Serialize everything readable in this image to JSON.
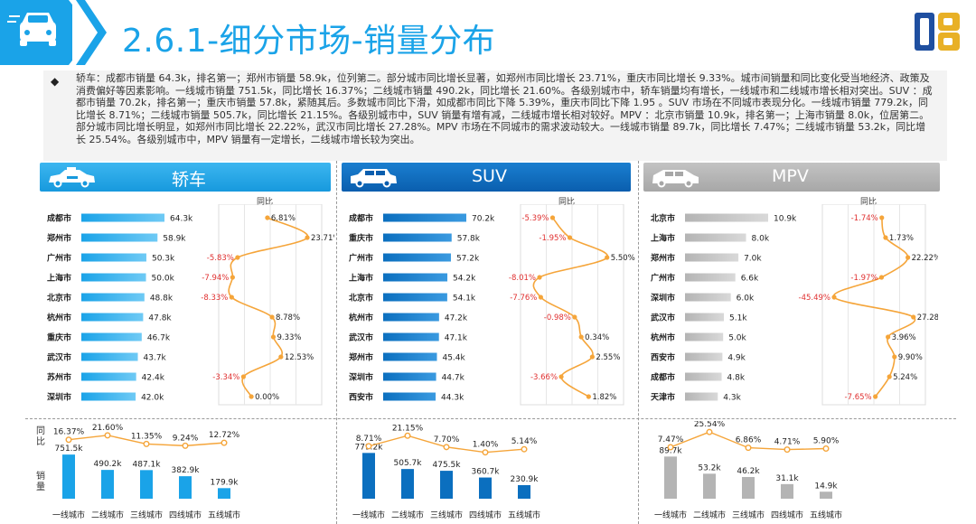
{
  "page": {
    "title": "2.6.1-细分市场-销量分布",
    "bullet": "◆",
    "summary": "轿车：成都市销量 64.3k，排名第一；郑州市销量 58.9k，位列第二。部分城市同比增长显著，如郑州市同比增长 23.71%，重庆市同比增长 9.33%。城市间销量和同比变化受当地经济、政策及消费偏好等因素影响。一线城市销量 751.5k，同比增长 16.37%；二线城市销量 490.2k，同比增长 21.60%。各级别城市中，轿车销量均有增长，一线城市和二线城市增长相对突出。SUV ：成都市销量 70.2k，排名第一；重庆市销量 57.8k，紧随其后。多数城市同比下滑，如成都市同比下降 5.39%，重庆市同比下降 1.95 。SUV 市场在不同城市表现分化。一线城市销量 779.2k，同比增长 8.71%；二线城市销量 505.7k，同比增长 21.15%。各级别城市中，SUV 销量有增有减，二线城市增长相对较好。MPV ：北京市销量 10.9k，排名第一；上海市销量 8.0k，位居第二。部分城市同比增长明显，如郑州市同比增长 22.22%，武汉市同比增长 27.28%。MPV 市场在不同城市的需求波动较大。一线城市销量 89.7k，同比增长 7.47%；二线城市销量 53.2k，同比增长 25.54%。各级别城市中，MPV 销量有一定增长，二线城市增长较为突出。"
  },
  "labels": {
    "tongbi": "同比",
    "bottom_tongbi": "同比",
    "bottom_sales": "销量"
  },
  "colors": {
    "blue": "#1aa3e8",
    "dark_blue": "#0b6fbf",
    "gray": "#b4b4b4",
    "orange": "#f5a53a",
    "red": "#e03030"
  },
  "icons": {
    "left_logo": "car-chevron-logo",
    "right_logo": "brand-logo",
    "panel_icons": [
      "taxi-car-icon",
      "suv-car-icon",
      "mpv-car-icon"
    ]
  },
  "chart_data": [
    {
      "type": "bar",
      "title": "轿车",
      "categories": [
        "成都市",
        "郑州市",
        "广州市",
        "上海市",
        "北京市",
        "杭州市",
        "重庆市",
        "武汉市",
        "苏州市",
        "深圳市"
      ],
      "values": [
        64.3,
        58.9,
        50.3,
        50.0,
        48.8,
        47.8,
        46.7,
        43.7,
        42.4,
        42.0
      ],
      "value_labels": [
        "64.3k",
        "58.9k",
        "50.3k",
        "50.0k",
        "48.8k",
        "47.8k",
        "46.7k",
        "43.7k",
        "42.4k",
        "42.0k"
      ],
      "series": [
        {
          "name": "同比",
          "values": [
            6.81,
            23.71,
            -5.83,
            -7.94,
            -8.33,
            8.78,
            9.33,
            12.53,
            -3.34,
            0.0
          ]
        }
      ],
      "yoy_labels": [
        "6.81%",
        "23.71%",
        "-5.83%",
        "-7.94%",
        "-8.33%",
        "8.78%",
        "9.33%",
        "12.53%",
        "-3.34%",
        "0.00%"
      ]
    },
    {
      "type": "bar",
      "title": "SUV",
      "categories": [
        "成都市",
        "重庆市",
        "广州市",
        "上海市",
        "北京市",
        "杭州市",
        "武汉市",
        "郑州市",
        "深圳市",
        "西安市"
      ],
      "values": [
        70.2,
        57.8,
        57.2,
        54.2,
        54.1,
        47.2,
        47.1,
        45.4,
        44.7,
        44.3
      ],
      "value_labels": [
        "70.2k",
        "57.8k",
        "57.2k",
        "54.2k",
        "54.1k",
        "47.2k",
        "47.1k",
        "45.4k",
        "44.7k",
        "44.3k"
      ],
      "series": [
        {
          "name": "同比",
          "values": [
            -5.39,
            -1.95,
            5.5,
            -8.01,
            -7.76,
            -0.98,
            0.34,
            2.55,
            -3.66,
            1.82
          ]
        }
      ],
      "yoy_labels": [
        "-5.39%",
        "-1.95%",
        "5.50%",
        "-8.01%",
        "-7.76%",
        "-0.98%",
        "0.34%",
        "2.55%",
        "-3.66%",
        "1.82%"
      ]
    },
    {
      "type": "bar",
      "title": "MPV",
      "categories": [
        "北京市",
        "上海市",
        "郑州市",
        "广州市",
        "深圳市",
        "武汉市",
        "杭州市",
        "西安市",
        "成都市",
        "天津市"
      ],
      "values": [
        10.9,
        8.0,
        7.0,
        6.6,
        6.0,
        5.1,
        5.0,
        4.9,
        4.8,
        4.3
      ],
      "value_labels": [
        "10.9k",
        "8.0k",
        "7.0k",
        "6.6k",
        "6.0k",
        "5.1k",
        "5.0k",
        "4.9k",
        "4.8k",
        "4.3k"
      ],
      "series": [
        {
          "name": "同比",
          "values": [
            -1.74,
            1.73,
            22.22,
            -1.97,
            -45.49,
            27.28,
            3.96,
            9.9,
            5.24,
            -7.65
          ]
        }
      ],
      "yoy_labels": [
        "-1.74%",
        "1.73%",
        "22.22%",
        "-1.97%",
        "-45.49%",
        "27.28%",
        "3.96%",
        "9.90%",
        "5.24%",
        "-7.65%"
      ]
    },
    {
      "type": "bar",
      "title": "",
      "categories": [
        "一线城市",
        "二线城市",
        "三线城市",
        "四线城市",
        "五线城市"
      ],
      "values": [
        751.5,
        490.2,
        487.1,
        382.9,
        179.9
      ],
      "value_labels": [
        "751.5k",
        "490.2k",
        "487.1k",
        "382.9k",
        "179.9k"
      ],
      "series": [
        {
          "name": "同比",
          "values": [
            16.37,
            21.6,
            11.35,
            9.24,
            12.72
          ]
        }
      ],
      "yoy_labels": [
        "16.37%",
        "21.60%",
        "11.35%",
        "9.24%",
        "12.72%"
      ]
    },
    {
      "type": "bar",
      "title": "",
      "categories": [
        "一线城市",
        "二线城市",
        "三线城市",
        "四线城市",
        "五线城市"
      ],
      "values": [
        779.2,
        505.7,
        475.5,
        360.7,
        230.9
      ],
      "value_labels": [
        "779.2k",
        "505.7k",
        "475.5k",
        "360.7k",
        "230.9k"
      ],
      "series": [
        {
          "name": "同比",
          "values": [
            8.71,
            21.15,
            7.7,
            1.4,
            5.14
          ]
        }
      ],
      "yoy_labels": [
        "8.71%",
        "21.15%",
        "7.70%",
        "1.40%",
        "5.14%"
      ]
    },
    {
      "type": "bar",
      "title": "",
      "categories": [
        "一线城市",
        "二线城市",
        "三线城市",
        "四线城市",
        "五线城市"
      ],
      "values": [
        89.7,
        53.2,
        46.2,
        31.1,
        14.9
      ],
      "value_labels": [
        "89.7k",
        "53.2k",
        "46.2k",
        "31.1k",
        "14.9k"
      ],
      "series": [
        {
          "name": "同比",
          "values": [
            7.47,
            25.54,
            6.86,
            4.71,
            5.9
          ]
        }
      ],
      "yoy_labels": [
        "7.47%",
        "25.54%",
        "6.86%",
        "4.71%",
        "5.90%"
      ]
    }
  ]
}
